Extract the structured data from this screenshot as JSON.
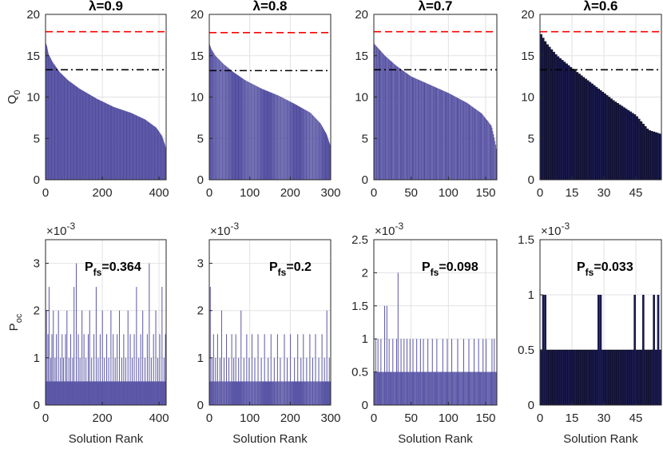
{
  "figure": {
    "xlabel": "Solution Rank"
  },
  "colors": {
    "bar": "#5a56a6",
    "bar_dark": "#1a1a4e",
    "bar_edge": "#2e2a7a",
    "grid": "#e2e2e2",
    "red_line": "#ff0000",
    "black_line": "#000000",
    "axis": "#262626"
  },
  "chart_data": [
    {
      "type": "bar",
      "panel": "top",
      "title": "λ=0.9",
      "ylabel": "Q0",
      "ylabel_main": "Q",
      "ylabel_sub": "0",
      "xlim": [
        0,
        425
      ],
      "ylim": [
        0,
        20
      ],
      "xticks": [
        0,
        200,
        400
      ],
      "yticks": [
        0,
        5,
        10,
        15,
        20
      ],
      "n_solutions": 425,
      "dark": false,
      "curve": [
        [
          0,
          16.6
        ],
        [
          5,
          16.1
        ],
        [
          10,
          15.2
        ],
        [
          25,
          14.2
        ],
        [
          50,
          13.0
        ],
        [
          80,
          12.0
        ],
        [
          120,
          11.0
        ],
        [
          180,
          9.8
        ],
        [
          240,
          8.8
        ],
        [
          300,
          8.1
        ],
        [
          350,
          7.3
        ],
        [
          390,
          6.3
        ],
        [
          410,
          5.3
        ],
        [
          420,
          4.3
        ],
        [
          425,
          3.5
        ]
      ],
      "ref_lines": [
        {
          "y": 17.9,
          "style": "dashed",
          "color": "red"
        },
        {
          "y": 13.3,
          "style": "dashdot",
          "color": "black"
        }
      ]
    },
    {
      "type": "bar",
      "panel": "top",
      "title": "λ=0.8",
      "ylabel": "",
      "ylim": [
        0,
        20
      ],
      "xlim": [
        0,
        300
      ],
      "xticks": [
        0,
        100,
        200,
        300
      ],
      "yticks": [
        0,
        5,
        10,
        15,
        20
      ],
      "n_solutions": 300,
      "dark": false,
      "curve": [
        [
          0,
          16.5
        ],
        [
          5,
          15.8
        ],
        [
          15,
          15.0
        ],
        [
          35,
          14.0
        ],
        [
          60,
          13.0
        ],
        [
          90,
          12.0
        ],
        [
          130,
          11.0
        ],
        [
          170,
          10.2
        ],
        [
          210,
          9.2
        ],
        [
          250,
          8.1
        ],
        [
          275,
          6.8
        ],
        [
          290,
          5.5
        ],
        [
          300,
          4.0
        ]
      ],
      "ref_lines": [
        {
          "y": 17.8,
          "style": "dashed",
          "color": "red"
        },
        {
          "y": 13.2,
          "style": "dashdot",
          "color": "black"
        }
      ]
    },
    {
      "type": "bar",
      "panel": "top",
      "title": "λ=0.7",
      "ylabel": "",
      "ylim": [
        0,
        20
      ],
      "xlim": [
        0,
        165
      ],
      "xticks": [
        0,
        50,
        100,
        150
      ],
      "yticks": [
        0,
        5,
        10,
        15,
        20
      ],
      "n_solutions": 165,
      "dark": false,
      "curve": [
        [
          0,
          16.5
        ],
        [
          5,
          16.0
        ],
        [
          15,
          15.0
        ],
        [
          30,
          13.8
        ],
        [
          50,
          12.5
        ],
        [
          75,
          11.5
        ],
        [
          100,
          10.5
        ],
        [
          125,
          9.3
        ],
        [
          145,
          8.0
        ],
        [
          158,
          6.5
        ],
        [
          163,
          4.5
        ],
        [
          165,
          3.5
        ]
      ],
      "ref_lines": [
        {
          "y": 17.9,
          "style": "dashed",
          "color": "red"
        },
        {
          "y": 13.3,
          "style": "dashdot",
          "color": "black"
        }
      ]
    },
    {
      "type": "bar",
      "panel": "top",
      "title": "λ=0.6",
      "ylabel": "",
      "ylim": [
        0,
        20
      ],
      "xlim": [
        0,
        57
      ],
      "xticks": [
        0,
        15,
        30,
        45
      ],
      "yticks": [
        0,
        5,
        10,
        15,
        20
      ],
      "n_solutions": 57,
      "dark": true,
      "curve": [
        [
          0,
          17.8
        ],
        [
          3,
          16.5
        ],
        [
          8,
          15.0
        ],
        [
          15,
          13.5
        ],
        [
          25,
          11.5
        ],
        [
          35,
          9.5
        ],
        [
          45,
          7.8
        ],
        [
          51,
          6.0
        ],
        [
          57,
          5.5
        ]
      ],
      "ref_lines": [
        {
          "y": 17.9,
          "style": "dashed",
          "color": "red"
        },
        {
          "y": 13.3,
          "style": "dashdot",
          "color": "black"
        }
      ]
    },
    {
      "type": "bar",
      "panel": "bottom",
      "ylabel": "Poc",
      "ylabel_main": "P",
      "ylabel_sub": "oc",
      "exponent": "×10",
      "exponent_power": "-3",
      "pfs_main": "P",
      "pfs_sub": "fs",
      "pfs_value": "=0.364",
      "xlim": [
        0,
        425
      ],
      "ylim": [
        0,
        3.5
      ],
      "xticks": [
        0,
        200,
        400
      ],
      "yticks": [
        0,
        1,
        2,
        3
      ],
      "ytick_labels": [
        "0",
        "1",
        "2",
        "3"
      ],
      "n_solutions": 425,
      "base": 0.5,
      "dark": false,
      "spikes": [
        [
          3,
          2.0
        ],
        [
          8,
          1.5
        ],
        [
          12,
          2.5
        ],
        [
          18,
          1.0
        ],
        [
          22,
          1.5
        ],
        [
          27,
          2.0
        ],
        [
          33,
          1.0
        ],
        [
          38,
          1.5
        ],
        [
          45,
          2.0
        ],
        [
          52,
          1.0
        ],
        [
          58,
          1.5
        ],
        [
          63,
          1.0
        ],
        [
          70,
          1.5
        ],
        [
          75,
          2.0
        ],
        [
          82,
          1.0
        ],
        [
          88,
          1.5
        ],
        [
          95,
          1.0
        ],
        [
          100,
          2.5
        ],
        [
          108,
          3.0
        ],
        [
          115,
          1.5
        ],
        [
          121,
          1.0
        ],
        [
          128,
          2.0
        ],
        [
          135,
          1.5
        ],
        [
          142,
          1.0
        ],
        [
          150,
          1.5
        ],
        [
          155,
          2.0
        ],
        [
          162,
          1.0
        ],
        [
          170,
          1.5
        ],
        [
          178,
          2.5
        ],
        [
          185,
          1.0
        ],
        [
          192,
          1.5
        ],
        [
          200,
          2.0
        ],
        [
          207,
          1.0
        ],
        [
          215,
          1.5
        ],
        [
          222,
          1.0
        ],
        [
          230,
          2.0
        ],
        [
          238,
          1.5
        ],
        [
          245,
          1.0
        ],
        [
          252,
          1.5
        ],
        [
          260,
          2.0
        ],
        [
          268,
          1.0
        ],
        [
          275,
          1.5
        ],
        [
          282,
          1.0
        ],
        [
          290,
          2.0
        ],
        [
          298,
          1.5
        ],
        [
          305,
          1.0
        ],
        [
          312,
          1.5
        ],
        [
          320,
          2.5
        ],
        [
          328,
          1.0
        ],
        [
          335,
          1.5
        ],
        [
          342,
          2.0
        ],
        [
          350,
          1.0
        ],
        [
          358,
          1.5
        ],
        [
          365,
          3.0
        ],
        [
          372,
          1.0
        ],
        [
          380,
          1.5
        ],
        [
          388,
          2.0
        ],
        [
          395,
          1.0
        ],
        [
          402,
          1.5
        ],
        [
          410,
          2.5
        ],
        [
          417,
          1.0
        ],
        [
          422,
          1.5
        ]
      ]
    },
    {
      "type": "bar",
      "panel": "bottom",
      "ylabel": "",
      "exponent": "×10",
      "exponent_power": "-3",
      "pfs_main": "P",
      "pfs_sub": "fs",
      "pfs_value": "=0.2",
      "xlim": [
        0,
        300
      ],
      "ylim": [
        0,
        3.5
      ],
      "xticks": [
        0,
        100,
        200,
        300
      ],
      "yticks": [
        0,
        1,
        2,
        3
      ],
      "ytick_labels": [
        "0",
        "1",
        "2",
        "3"
      ],
      "n_solutions": 300,
      "base": 0.5,
      "dark": false,
      "spikes": [
        [
          2,
          2.5
        ],
        [
          6,
          1.0
        ],
        [
          10,
          1.5
        ],
        [
          15,
          1.0
        ],
        [
          20,
          1.5
        ],
        [
          26,
          1.0
        ],
        [
          30,
          2.0
        ],
        [
          36,
          1.0
        ],
        [
          42,
          1.5
        ],
        [
          48,
          1.0
        ],
        [
          55,
          1.5
        ],
        [
          60,
          1.0
        ],
        [
          65,
          1.5
        ],
        [
          72,
          1.0
        ],
        [
          78,
          2.0
        ],
        [
          85,
          1.0
        ],
        [
          92,
          1.5
        ],
        [
          98,
          1.0
        ],
        [
          105,
          1.5
        ],
        [
          112,
          1.0
        ],
        [
          120,
          1.5
        ],
        [
          128,
          1.0
        ],
        [
          136,
          1.5
        ],
        [
          145,
          1.0
        ],
        [
          152,
          1.5
        ],
        [
          160,
          1.0
        ],
        [
          168,
          1.5
        ],
        [
          175,
          1.0
        ],
        [
          185,
          1.5
        ],
        [
          192,
          1.0
        ],
        [
          200,
          1.5
        ],
        [
          210,
          1.0
        ],
        [
          218,
          1.5
        ],
        [
          226,
          1.0
        ],
        [
          232,
          1.5
        ],
        [
          240,
          1.0
        ],
        [
          248,
          1.5
        ],
        [
          255,
          1.0
        ],
        [
          262,
          1.5
        ],
        [
          270,
          1.0
        ],
        [
          278,
          1.5
        ],
        [
          284,
          1.0
        ],
        [
          290,
          2.0
        ],
        [
          296,
          1.0
        ]
      ]
    },
    {
      "type": "bar",
      "panel": "bottom",
      "ylabel": "",
      "exponent": "×10",
      "exponent_power": "-3",
      "pfs_main": "P",
      "pfs_sub": "fs",
      "pfs_value": "=0.098",
      "xlim": [
        0,
        165
      ],
      "ylim": [
        0,
        2.5
      ],
      "xticks": [
        0,
        50,
        100,
        150
      ],
      "yticks": [
        0,
        0.5,
        1,
        1.5,
        2,
        2.5
      ],
      "ytick_labels": [
        "0",
        "0.5",
        "1",
        "1.5",
        "2",
        "2.5"
      ],
      "n_solutions": 165,
      "base": 0.5,
      "dark": false,
      "spikes": [
        [
          2,
          1.0
        ],
        [
          5,
          1.0
        ],
        [
          9,
          1.0
        ],
        [
          14,
          1.5
        ],
        [
          17,
          1.5
        ],
        [
          20,
          1.0
        ],
        [
          25,
          1.0
        ],
        [
          30,
          1.0
        ],
        [
          32,
          2.0
        ],
        [
          36,
          1.0
        ],
        [
          40,
          1.0
        ],
        [
          44,
          1.0
        ],
        [
          48,
          1.0
        ],
        [
          52,
          1.0
        ],
        [
          57,
          1.0
        ],
        [
          62,
          1.0
        ],
        [
          66,
          1.0
        ],
        [
          72,
          1.0
        ],
        [
          78,
          1.0
        ],
        [
          84,
          1.0
        ],
        [
          92,
          1.0
        ],
        [
          98,
          1.0
        ],
        [
          104,
          1.0
        ],
        [
          112,
          1.0
        ],
        [
          120,
          1.0
        ],
        [
          127,
          1.0
        ],
        [
          134,
          1.0
        ],
        [
          140,
          1.0
        ],
        [
          146,
          1.0
        ],
        [
          150,
          1.0
        ],
        [
          158,
          1.0
        ],
        [
          161,
          1.0
        ]
      ]
    },
    {
      "type": "bar",
      "panel": "bottom",
      "ylabel": "",
      "exponent": "×10",
      "exponent_power": "-3",
      "pfs_main": "P",
      "pfs_sub": "fs",
      "pfs_value": "=0.033",
      "xlim": [
        0,
        57
      ],
      "ylim": [
        0,
        1.5
      ],
      "xticks": [
        0,
        15,
        30,
        45
      ],
      "yticks": [
        0,
        0.5,
        1,
        1.5
      ],
      "ytick_labels": [
        "0",
        "0.5",
        "1",
        "1.5"
      ],
      "n_solutions": 57,
      "base": 0.5,
      "dark": true,
      "spikes": [
        [
          1,
          1.0
        ],
        [
          2,
          1.0
        ],
        [
          27,
          1.0
        ],
        [
          28,
          1.0
        ],
        [
          44,
          1.0
        ],
        [
          48,
          1.0
        ],
        [
          53,
          1.0
        ],
        [
          55,
          1.0
        ]
      ]
    }
  ]
}
